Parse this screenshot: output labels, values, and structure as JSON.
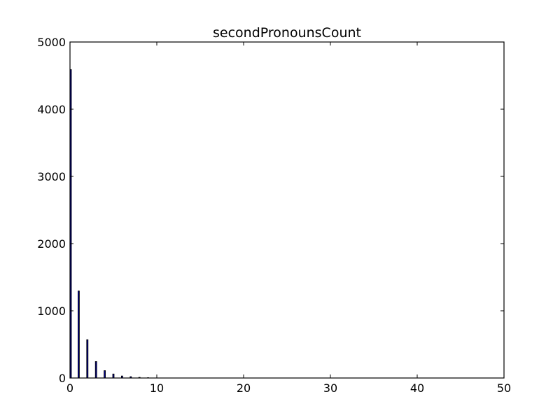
{
  "chart_data": {
    "type": "bar",
    "title": "secondPronounsCount",
    "xlabel": "",
    "ylabel": "",
    "xlim": [
      0,
      50
    ],
    "ylim": [
      0,
      5000
    ],
    "xticks": [
      0,
      10,
      20,
      30,
      40,
      50
    ],
    "yticks": [
      0,
      1000,
      2000,
      3000,
      4000,
      5000
    ],
    "grid": false,
    "legend": "none",
    "bar_color": "#00008b",
    "bar_edge_color": "#000000",
    "bars": [
      {
        "x": 0,
        "value": 4590
      },
      {
        "x": 1,
        "value": 1295
      },
      {
        "x": 2,
        "value": 570
      },
      {
        "x": 3,
        "value": 245
      },
      {
        "x": 4,
        "value": 110
      },
      {
        "x": 5,
        "value": 60
      },
      {
        "x": 6,
        "value": 30
      },
      {
        "x": 7,
        "value": 20
      },
      {
        "x": 8,
        "value": 10
      },
      {
        "x": 9,
        "value": 5
      }
    ]
  }
}
